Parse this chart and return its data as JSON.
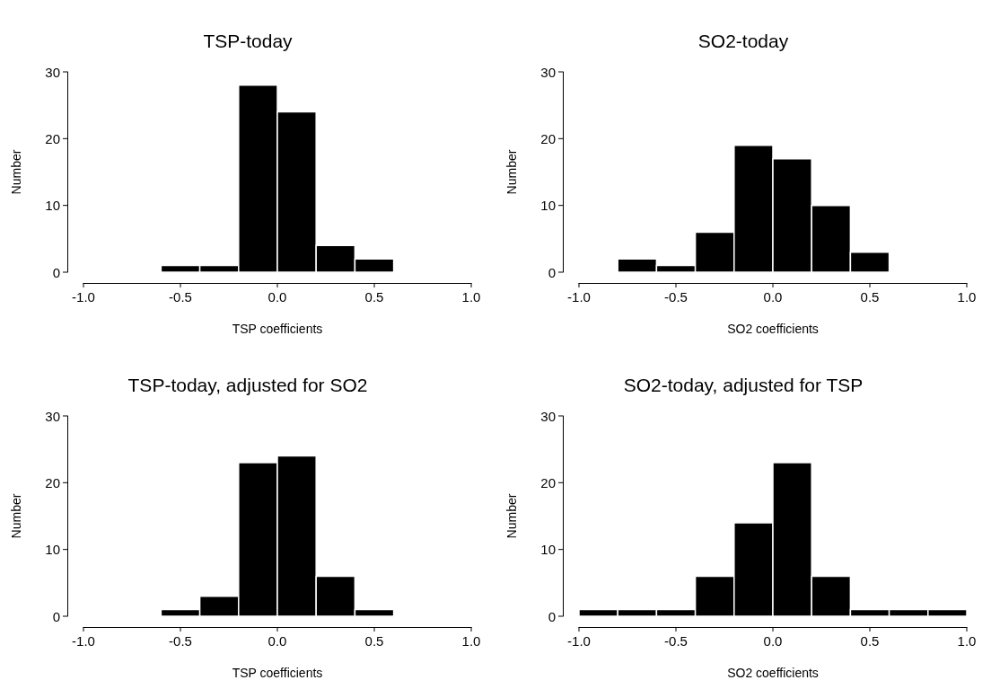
{
  "chart_data": [
    {
      "type": "histogram",
      "title": "TSP-today",
      "xlabel": "TSP coefficients",
      "ylabel": "Number",
      "bins": [
        -0.6,
        -0.4,
        -0.2,
        0,
        0.2,
        0.4,
        0.6
      ],
      "values": [
        1,
        1,
        28,
        24,
        4,
        2
      ],
      "color": "#000000",
      "xlim": [
        -1,
        1
      ],
      "xticks": [
        {
          "value": -1,
          "label": "-1.0"
        },
        {
          "value": -0.5,
          "label": "-0.5"
        },
        {
          "value": 0,
          "label": "0.0"
        },
        {
          "value": 0.5,
          "label": "0.5"
        },
        {
          "value": 1,
          "label": "1.0"
        }
      ],
      "ylim": [
        0,
        30
      ],
      "yticks": [
        0,
        10,
        20,
        30
      ],
      "grid": false
    },
    {
      "type": "histogram",
      "title": "SO2-today",
      "xlabel": "SO2 coefficients",
      "ylabel": "Number",
      "bins": [
        -0.8,
        -0.6,
        -0.4,
        -0.2,
        0,
        0.2,
        0.4,
        0.6
      ],
      "values": [
        2,
        1,
        6,
        19,
        17,
        10,
        3
      ],
      "color": "#000000",
      "xlim": [
        -1,
        1
      ],
      "xticks": [
        {
          "value": -1,
          "label": "-1.0"
        },
        {
          "value": -0.5,
          "label": "-0.5"
        },
        {
          "value": 0,
          "label": "0.0"
        },
        {
          "value": 0.5,
          "label": "0.5"
        },
        {
          "value": 1,
          "label": "1.0"
        }
      ],
      "ylim": [
        0,
        30
      ],
      "yticks": [
        0,
        10,
        20,
        30
      ],
      "grid": false
    },
    {
      "type": "histogram",
      "title": "TSP-today, adjusted for SO2",
      "xlabel": "TSP coefficients",
      "ylabel": "Number",
      "bins": [
        -0.6,
        -0.4,
        -0.2,
        0,
        0.2,
        0.4,
        0.6
      ],
      "values": [
        1,
        3,
        23,
        24,
        6,
        1
      ],
      "color": "#000000",
      "xlim": [
        -1,
        1
      ],
      "xticks": [
        {
          "value": -1,
          "label": "-1.0"
        },
        {
          "value": -0.5,
          "label": "-0.5"
        },
        {
          "value": 0,
          "label": "0.0"
        },
        {
          "value": 0.5,
          "label": "0.5"
        },
        {
          "value": 1,
          "label": "1.0"
        }
      ],
      "ylim": [
        0,
        30
      ],
      "yticks": [
        0,
        10,
        20,
        30
      ],
      "grid": false
    },
    {
      "type": "histogram",
      "title": "SO2-today, adjusted for TSP",
      "xlabel": "SO2 coefficients",
      "ylabel": "Number",
      "bins": [
        -1,
        -0.8,
        -0.6,
        -0.4,
        -0.2,
        0,
        0.2,
        0.4,
        0.6,
        0.8,
        1
      ],
      "values": [
        1,
        1,
        1,
        6,
        14,
        23,
        6,
        1,
        1,
        1
      ],
      "color": "#000000",
      "xlim": [
        -1,
        1
      ],
      "xticks": [
        {
          "value": -1,
          "label": "-1.0"
        },
        {
          "value": -0.5,
          "label": "-0.5"
        },
        {
          "value": 0,
          "label": "0.0"
        },
        {
          "value": 0.5,
          "label": "0.5"
        },
        {
          "value": 1,
          "label": "1.0"
        }
      ],
      "ylim": [
        0,
        30
      ],
      "yticks": [
        0,
        10,
        20,
        30
      ],
      "grid": false
    }
  ]
}
